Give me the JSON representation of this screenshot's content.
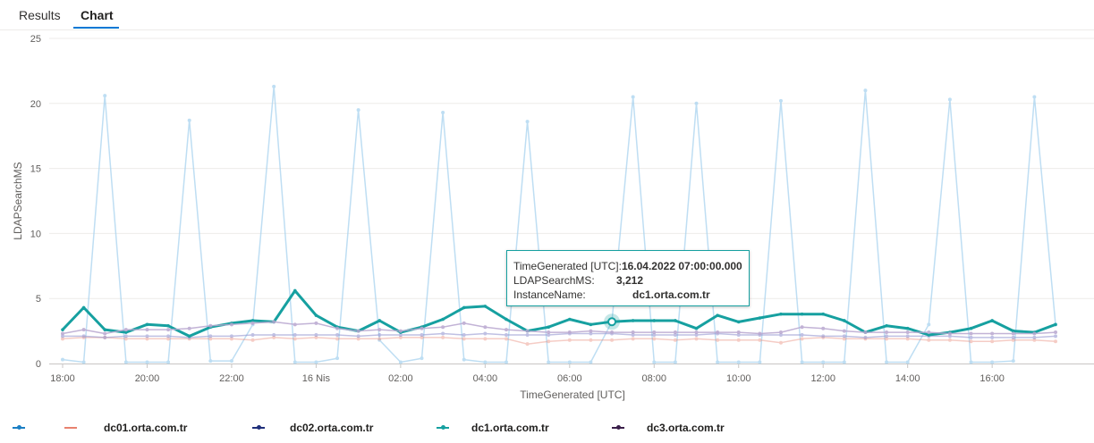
{
  "tabs": [
    {
      "label": "Results",
      "active": false
    },
    {
      "label": "Chart",
      "active": true
    }
  ],
  "chart_data": {
    "type": "line",
    "xlabel": "TimeGenerated [UTC]",
    "ylabel": "LDAPSearchMS",
    "ylim": [
      0,
      25
    ],
    "yticks": [
      0,
      5,
      10,
      15,
      20,
      25
    ],
    "xlim": [
      "2022-04-15T18:00",
      "2022-04-16T17:30"
    ],
    "xticks": [
      "18:00",
      "20:00",
      "22:00",
      "16 Nis",
      "02:00",
      "04:00",
      "06:00",
      "08:00",
      "10:00",
      "12:00",
      "14:00",
      "16:00"
    ],
    "grid": "horizontal",
    "legend_position": "bottom",
    "x": [
      "2022-04-15T18:00",
      "2022-04-15T18:30",
      "2022-04-15T19:00",
      "2022-04-15T19:30",
      "2022-04-15T20:00",
      "2022-04-15T20:30",
      "2022-04-15T21:00",
      "2022-04-15T21:30",
      "2022-04-15T22:00",
      "2022-04-15T22:30",
      "2022-04-15T23:00",
      "2022-04-15T23:30",
      "2022-04-16T00:00",
      "2022-04-16T00:30",
      "2022-04-16T01:00",
      "2022-04-16T01:30",
      "2022-04-16T02:00",
      "2022-04-16T02:30",
      "2022-04-16T03:00",
      "2022-04-16T03:30",
      "2022-04-16T04:00",
      "2022-04-16T04:30",
      "2022-04-16T05:00",
      "2022-04-16T05:30",
      "2022-04-16T06:00",
      "2022-04-16T06:30",
      "2022-04-16T07:00",
      "2022-04-16T07:30",
      "2022-04-16T08:00",
      "2022-04-16T08:30",
      "2022-04-16T09:00",
      "2022-04-16T09:30",
      "2022-04-16T10:00",
      "2022-04-16T10:30",
      "2022-04-16T11:00",
      "2022-04-16T11:30",
      "2022-04-16T12:00",
      "2022-04-16T12:30",
      "2022-04-16T13:00",
      "2022-04-16T13:30",
      "2022-04-16T14:00",
      "2022-04-16T14:30",
      "2022-04-16T15:00",
      "2022-04-16T15:30",
      "2022-04-16T16:00",
      "2022-04-16T16:30",
      "2022-04-16T17:00",
      "2022-04-16T17:30"
    ],
    "series": [
      {
        "name": "",
        "color": "#a9d3ef",
        "opacity": 0.75,
        "width": 1.5,
        "values": [
          0.3,
          0.1,
          20.6,
          0.1,
          0.1,
          0.1,
          18.7,
          0.2,
          0.2,
          3.0,
          21.3,
          0.1,
          0.1,
          0.4,
          19.5,
          1.8,
          0.1,
          0.4,
          19.3,
          0.3,
          0.1,
          0.1,
          18.6,
          0.1,
          0.1,
          0.1,
          3.2,
          20.5,
          0.1,
          0.1,
          20.0,
          0.1,
          0.1,
          0.1,
          20.2,
          0.1,
          0.1,
          0.1,
          21.0,
          0.1,
          0.1,
          3.0,
          20.3,
          0.1,
          0.1,
          0.2,
          20.5,
          3.0
        ]
      },
      {
        "name": "dc01.orta.com.tr",
        "color": "#e8826f",
        "opacity": 0.4,
        "width": 1.5,
        "values": [
          1.9,
          2.0,
          2.0,
          1.9,
          1.9,
          1.9,
          1.9,
          1.9,
          1.9,
          1.8,
          2.0,
          1.9,
          2.0,
          1.9,
          1.9,
          1.9,
          2.0,
          2.0,
          2.0,
          1.9,
          1.9,
          1.9,
          1.5,
          1.7,
          1.8,
          1.8,
          1.8,
          1.9,
          1.9,
          1.8,
          1.9,
          1.8,
          1.8,
          1.8,
          1.6,
          1.9,
          2.0,
          1.9,
          1.9,
          1.9,
          1.9,
          1.8,
          1.8,
          1.7,
          1.7,
          1.8,
          1.8,
          1.7
        ]
      },
      {
        "name": "dc02.orta.com.tr",
        "color": "#8c8ecd",
        "opacity": 0.55,
        "width": 1.5,
        "values": [
          2.1,
          2.1,
          2.0,
          2.1,
          2.1,
          2.1,
          2.0,
          2.1,
          2.1,
          2.2,
          2.2,
          2.2,
          2.2,
          2.2,
          2.1,
          2.2,
          2.2,
          2.2,
          2.3,
          2.2,
          2.3,
          2.2,
          2.2,
          2.2,
          2.3,
          2.3,
          2.3,
          2.2,
          2.2,
          2.2,
          2.2,
          2.3,
          2.2,
          2.2,
          2.2,
          2.2,
          2.1,
          2.1,
          2.0,
          2.1,
          2.1,
          2.1,
          2.1,
          2.0,
          2.0,
          2.0,
          2.0,
          2.1
        ]
      },
      {
        "name": "dc1.orta.com.tr",
        "color": "#16a0a0",
        "opacity": 1,
        "width": 3,
        "values": [
          2.6,
          4.3,
          2.6,
          2.4,
          3.0,
          2.9,
          2.1,
          2.8,
          3.1,
          3.3,
          3.2,
          5.6,
          3.7,
          2.8,
          2.5,
          3.3,
          2.4,
          2.8,
          3.4,
          4.3,
          4.4,
          3.4,
          2.5,
          2.8,
          3.4,
          3.0,
          3.212,
          3.3,
          3.3,
          3.3,
          2.7,
          3.7,
          3.2,
          3.5,
          3.8,
          3.8,
          3.8,
          3.3,
          2.4,
          2.9,
          2.7,
          2.2,
          2.4,
          2.7,
          3.3,
          2.5,
          2.4,
          3.0
        ]
      },
      {
        "name": "dc3.orta.com.tr",
        "color": "#b8a6cf",
        "opacity": 0.85,
        "width": 1.5,
        "values": [
          2.3,
          2.6,
          2.3,
          2.6,
          2.6,
          2.6,
          2.7,
          2.9,
          3.0,
          3.1,
          3.2,
          3.0,
          3.1,
          2.7,
          2.5,
          2.6,
          2.5,
          2.7,
          2.8,
          3.1,
          2.8,
          2.6,
          2.5,
          2.4,
          2.4,
          2.5,
          2.4,
          2.4,
          2.4,
          2.4,
          2.4,
          2.4,
          2.4,
          2.3,
          2.4,
          2.8,
          2.7,
          2.5,
          2.4,
          2.4,
          2.4,
          2.4,
          2.3,
          2.3,
          2.3,
          2.3,
          2.3,
          2.4
        ]
      }
    ],
    "tooltip": {
      "rows": [
        {
          "label": "TimeGenerated [UTC]:",
          "value": "16.04.2022 07:00:00.000"
        },
        {
          "label": "LDAPSearchMS:",
          "value": "3,212"
        },
        {
          "label": "InstanceName:",
          "value": "dc1.orta.com.tr"
        }
      ],
      "series_index": 3,
      "point_index": 26
    }
  }
}
